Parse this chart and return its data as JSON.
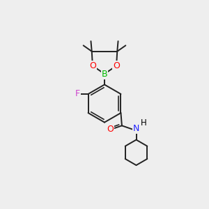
{
  "background_color": "#eeeeee",
  "atom_colors": {
    "C": "#000000",
    "H": "#000000",
    "O": "#ff0000",
    "B": "#00bb00",
    "F": "#cc44cc",
    "N": "#2222ff"
  },
  "bond_color": "#222222",
  "bond_width": 1.4,
  "figsize": [
    3.0,
    3.0
  ],
  "dpi": 100
}
